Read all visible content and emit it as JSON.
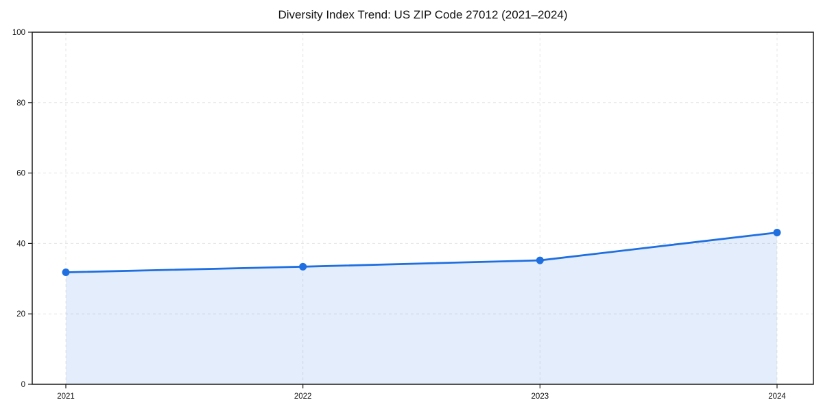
{
  "chart_data": {
    "type": "area",
    "title": "Diversity Index Trend: US ZIP Code 27012 (2021–2024)",
    "series_name": "Diversity Index",
    "x": [
      2021,
      2022,
      2023,
      2024
    ],
    "categories": [
      "2021",
      "2022",
      "2023",
      "2024"
    ],
    "values": [
      31.8,
      33.4,
      35.2,
      43.1
    ],
    "xlabel": "",
    "ylabel": "",
    "ylim": [
      0,
      100
    ],
    "yticks": [
      0,
      20,
      40,
      60,
      80,
      100
    ],
    "grid": true,
    "grid_style": "dashed",
    "legend": false,
    "marker": "circle",
    "colors": {
      "line": "#1f6fe0",
      "fill": "#1f6fe0",
      "fill_opacity": 0.12,
      "grid": "#e4e4e4",
      "axis": "#1a1a1a",
      "tick_text": "#111111",
      "background": "#ffffff"
    }
  }
}
